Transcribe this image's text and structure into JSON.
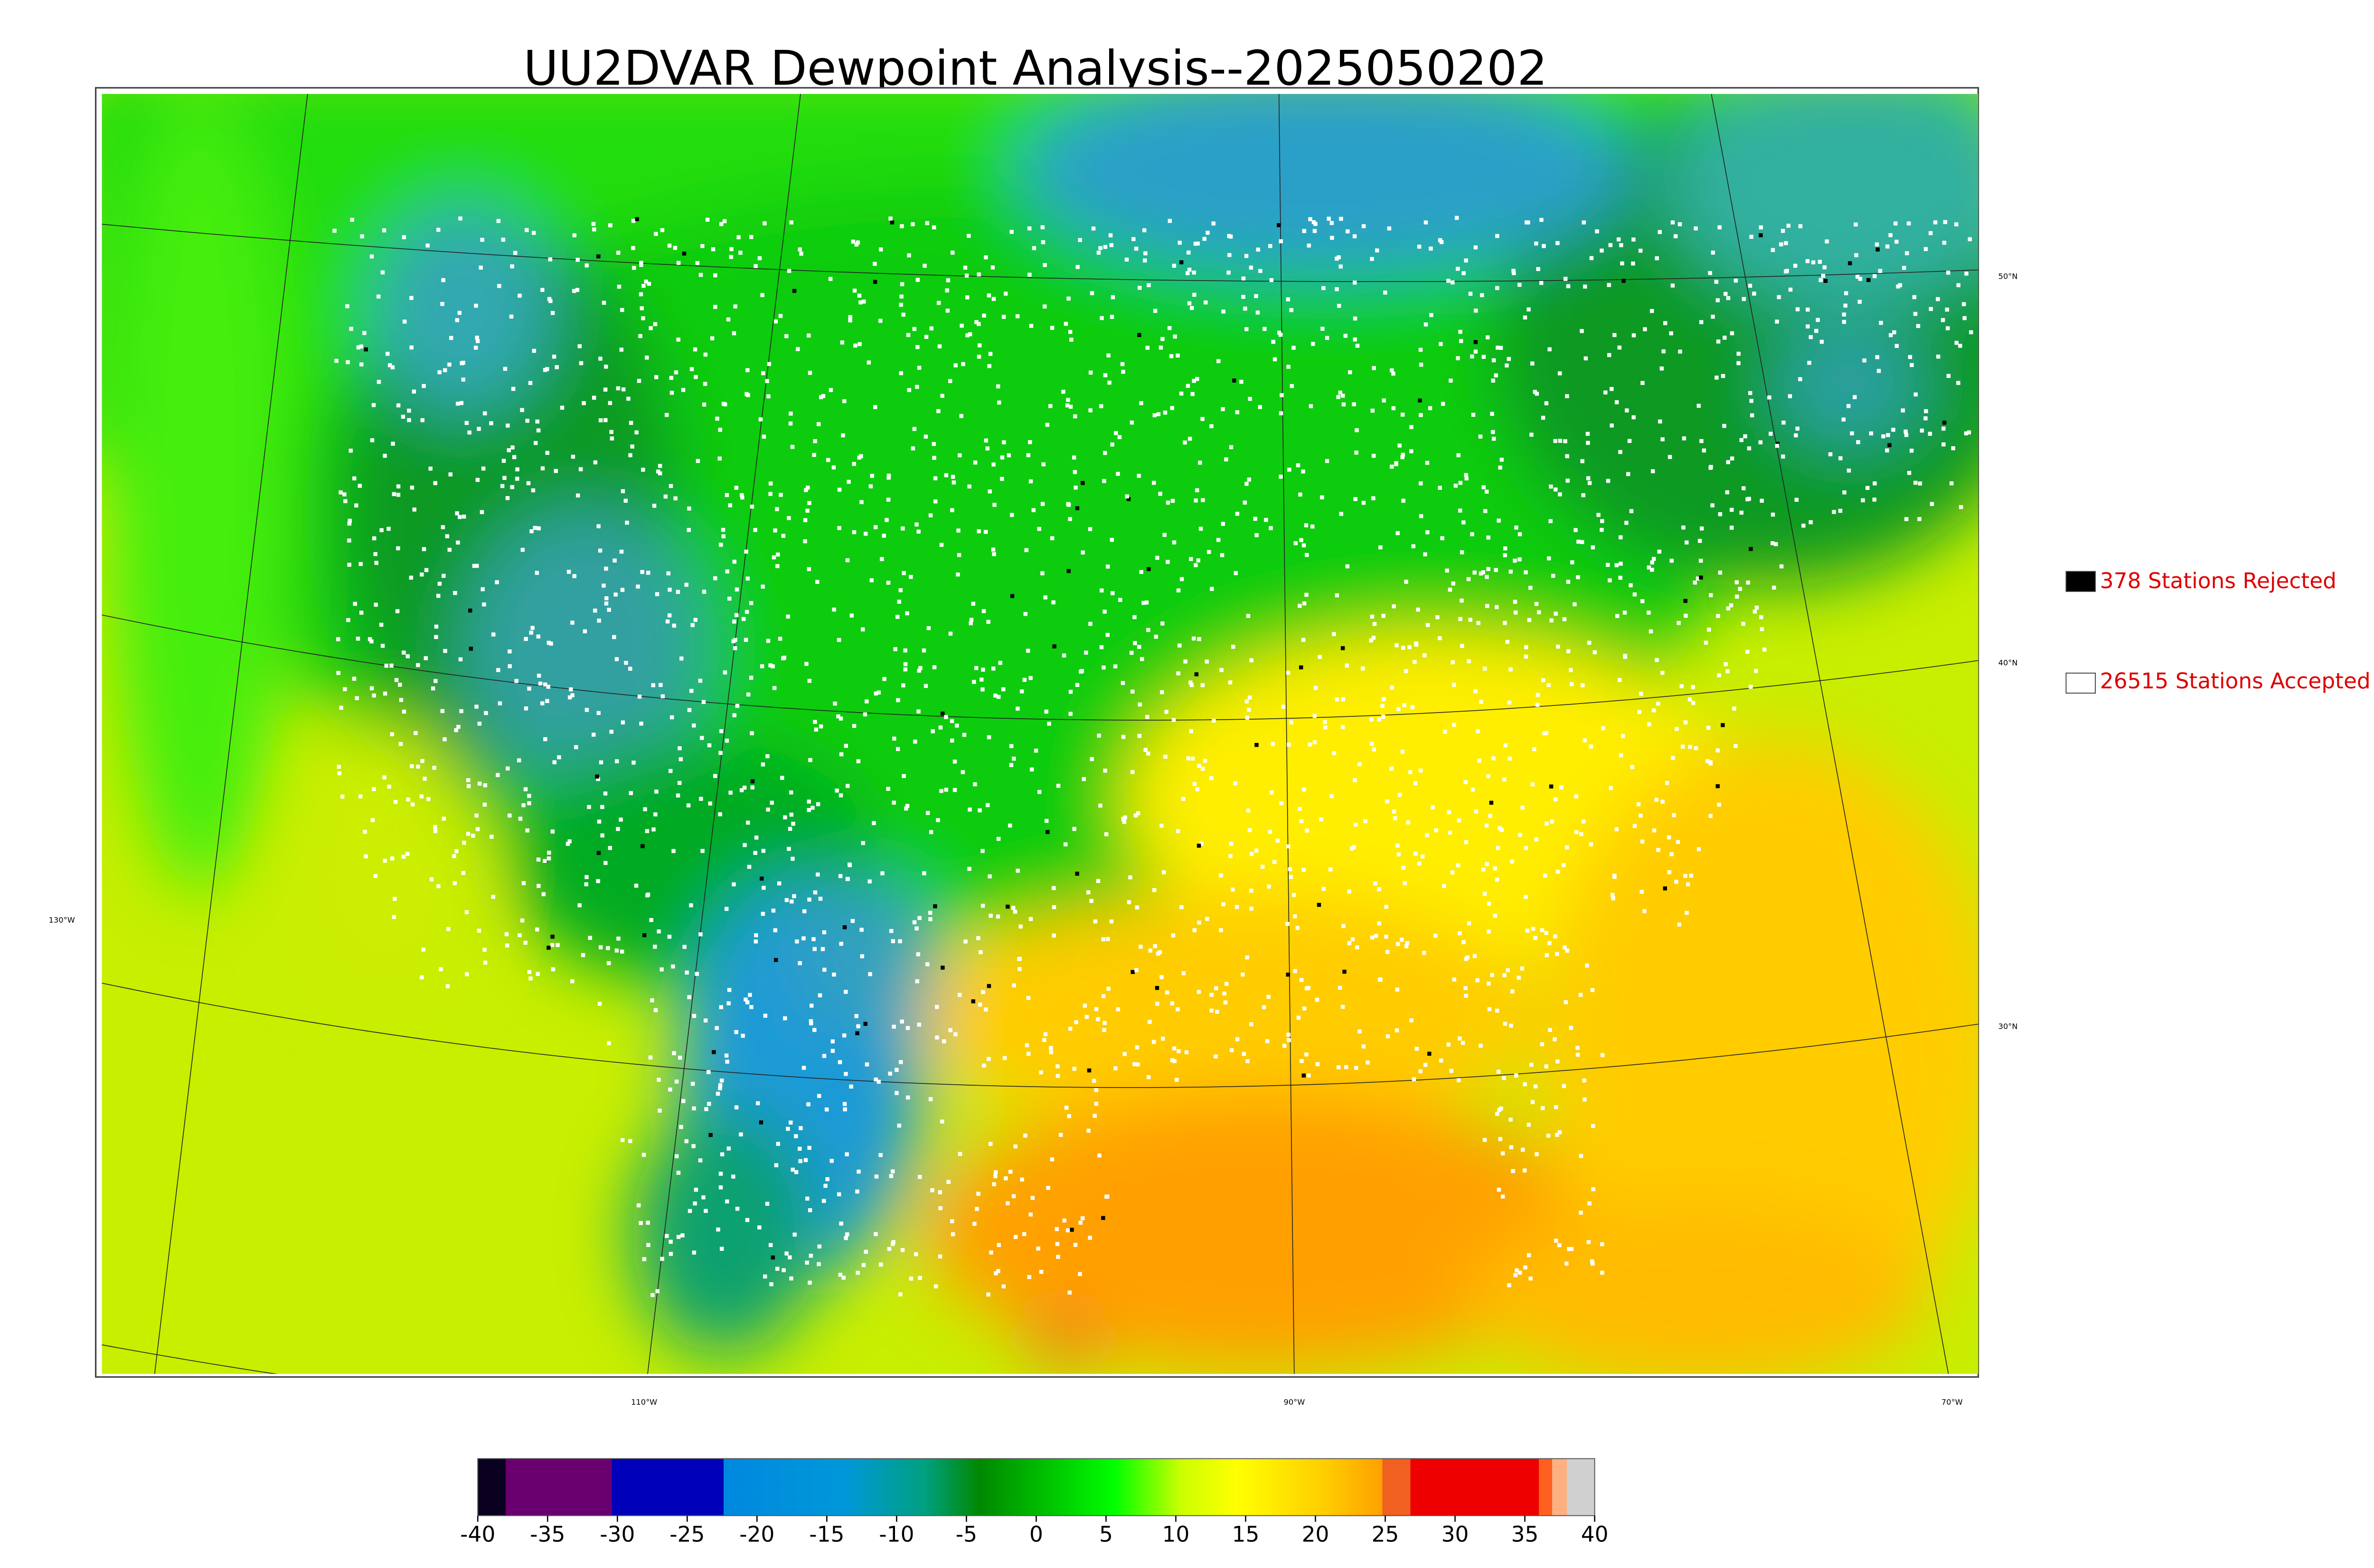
{
  "title": "UU2DVAR Dewpoint Analysis--2025050202",
  "map": {
    "latitude_labels": [
      "50°N",
      "40°N",
      "30°N"
    ],
    "longitude_labels": [
      "130°W",
      "110°W",
      "90°W",
      "70°W"
    ]
  },
  "legend": [
    {
      "label": "378 Stations Rejected",
      "color": "#000000"
    },
    {
      "label": "26515 Stations Accepted",
      "color": "#ffffff"
    }
  ],
  "colorbar": {
    "lim": [
      -40,
      40
    ],
    "ticks": [
      -40,
      -35,
      -30,
      -25,
      -20,
      -15,
      -10,
      -5,
      0,
      5,
      10,
      15,
      20,
      25,
      30,
      35,
      40
    ]
  }
}
